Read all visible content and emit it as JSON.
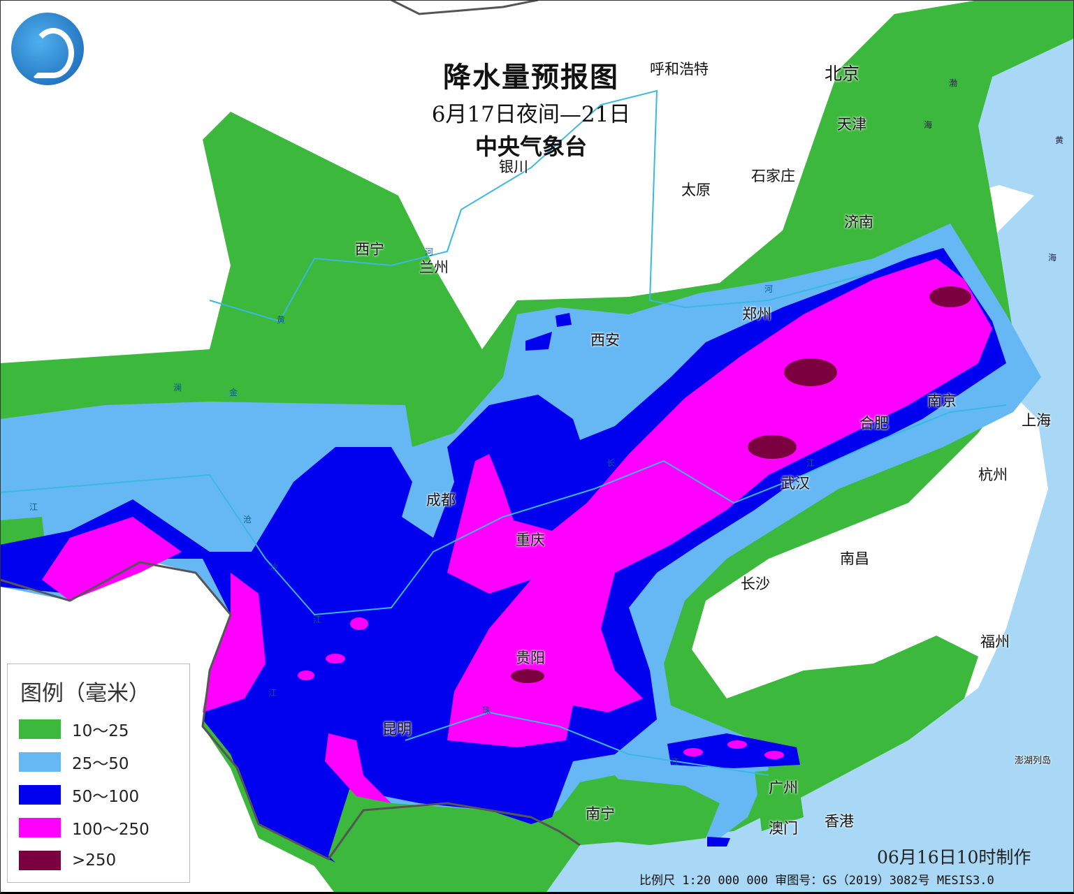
{
  "title": {
    "main": "降水量预报图",
    "period": "6月17日夜间—21日",
    "issuer": "中央气象台"
  },
  "legend": {
    "title": "图例（毫米）",
    "items": [
      {
        "label": "10～25",
        "color": "#3cb83c"
      },
      {
        "label": "25～50",
        "color": "#66b8f5"
      },
      {
        "label": "50～100",
        "color": "#0000ee"
      },
      {
        "label": "100～250",
        "color": "#ff00ff"
      },
      {
        "label": ">250",
        "color": "#7a0040"
      }
    ]
  },
  "colors": {
    "land": "#ffffff",
    "sea": "#a8d8f5",
    "river": "#3ab8e0",
    "border": "#555555"
  },
  "cities": [
    "呼和浩特",
    "北京",
    "天津",
    "银川",
    "太原",
    "石家庄",
    "济南",
    "西宁",
    "兰州",
    "郑州",
    "西安",
    "南京",
    "合肥",
    "上海",
    "成都",
    "武汉",
    "杭州",
    "重庆",
    "南昌",
    "长沙",
    "福州",
    "贵阳",
    "昆明",
    "广州",
    "南宁",
    "澳门",
    "香港",
    "澎湖列岛"
  ],
  "rivers": [
    "河",
    "黄",
    "澜",
    "金",
    "江",
    "沧",
    "沙",
    "江",
    "江",
    "长",
    "江",
    "珠",
    "江",
    "河"
  ],
  "seas": [
    "渤",
    "海",
    "黄",
    "海"
  ],
  "made_time": "06月16日10时制作",
  "footer": "比例尺 1:20 000 000  审图号：GS（2019）3082号 MESIS3.0"
}
